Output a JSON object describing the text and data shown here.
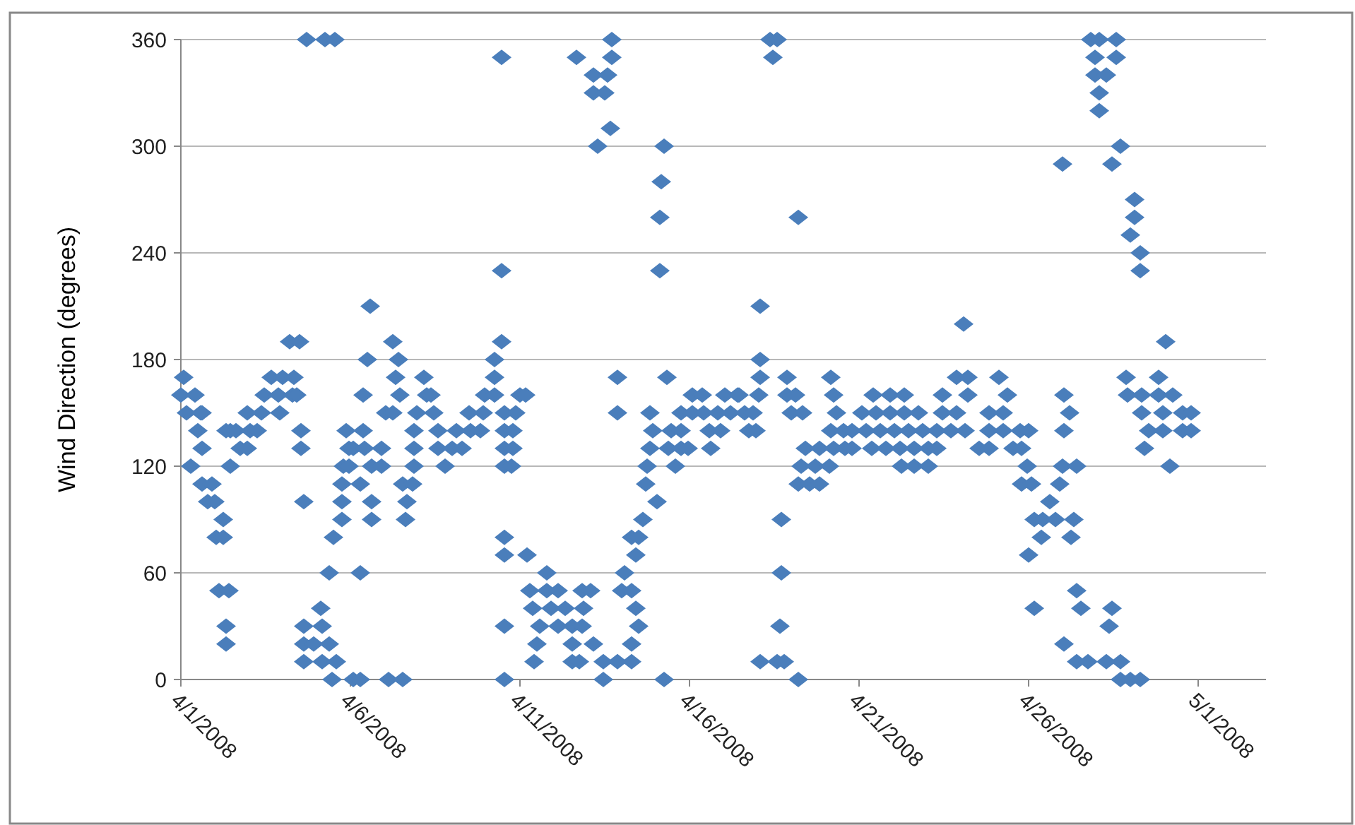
{
  "chart_data": {
    "type": "scatter",
    "ylabel": "Wind Direction (degrees)",
    "color": "#4a7ebb",
    "marker": "diamond",
    "grid": "y",
    "xlim": [
      "2008-04-01",
      "2008-05-03"
    ],
    "xticks": [
      {
        "value": "2008-04-01",
        "label": "4/1/2008"
      },
      {
        "value": "2008-04-06",
        "label": "4/6/2008"
      },
      {
        "value": "2008-04-11",
        "label": "4/11/2008"
      },
      {
        "value": "2008-04-16",
        "label": "4/16/2008"
      },
      {
        "value": "2008-04-21",
        "label": "4/21/2008"
      },
      {
        "value": "2008-04-26",
        "label": "4/26/2008"
      },
      {
        "value": "2008-05-01",
        "label": "5/1/2008"
      }
    ],
    "ylim": [
      0,
      360
    ],
    "yticks": [
      0,
      60,
      120,
      180,
      240,
      300,
      360
    ],
    "x": [
      "2008-04-01T00:00",
      "2008-04-01T02:00",
      "2008-04-01T04:00",
      "2008-04-01T07:00",
      "2008-04-01T10:00",
      "2008-04-01T12:00",
      "2008-04-01T14:00",
      "2008-04-01T15:00",
      "2008-04-01T15:00",
      "2008-04-01T15:00",
      "2008-04-01T19:00",
      "2008-04-01T22:00",
      "2008-04-02T00:00",
      "2008-04-02T01:00",
      "2008-04-02T03:00",
      "2008-04-02T06:00",
      "2008-04-02T06:00",
      "2008-04-02T08:00",
      "2008-04-02T08:00",
      "2008-04-02T08:00",
      "2008-04-02T10:00",
      "2008-04-02T11:00",
      "2008-04-02T11:00",
      "2008-04-02T15:00",
      "2008-04-02T18:00",
      "2008-04-02T23:00",
      "2008-04-02T23:00",
      "2008-04-03T01:00",
      "2008-04-03T06:00",
      "2008-04-03T09:00",
      "2008-04-03T11:00",
      "2008-04-03T16:00",
      "2008-04-03T21:00",
      "2008-04-03T22:00",
      "2008-04-04T00:00",
      "2008-04-04T05:00",
      "2008-04-04T07:00",
      "2008-04-04T08:00",
      "2008-04-04T10:00",
      "2008-04-04T12:00",
      "2008-04-04T13:00",
      "2008-04-04T13:00",
      "2008-04-04T15:00",
      "2008-04-04T15:00",
      "2008-04-04T15:00",
      "2008-04-04T15:00",
      "2008-04-04T17:00",
      "2008-04-04T22:00",
      "2008-04-05T03:00",
      "2008-04-05T04:00",
      "2008-04-05T04:00",
      "2008-04-05T06:00",
      "2008-04-05T09:00",
      "2008-04-05T09:00",
      "2008-04-05T11:00",
      "2008-04-05T12:00",
      "2008-04-05T13:00",
      "2008-04-05T14:00",
      "2008-04-05T18:00",
      "2008-04-05T18:00",
      "2008-04-05T18:00",
      "2008-04-05T19:00",
      "2008-04-05T21:00",
      "2008-04-05T23:00",
      "2008-04-05T23:00",
      "2008-04-06T02:00",
      "2008-04-06T02:00",
      "2008-04-06T07:00",
      "2008-04-06T07:00",
      "2008-04-06T07:00",
      "2008-04-06T09:00",
      "2008-04-06T09:00",
      "2008-04-06T10:00",
      "2008-04-06T12:00",
      "2008-04-06T14:00",
      "2008-04-06T15:00",
      "2008-04-06T15:00",
      "2008-04-06T15:00",
      "2008-04-06T22:00",
      "2008-04-06T22:00",
      "2008-04-07T01:00",
      "2008-04-07T03:00",
      "2008-04-07T06:00",
      "2008-04-07T06:00",
      "2008-04-07T08:00",
      "2008-04-07T10:00",
      "2008-04-07T11:00",
      "2008-04-07T13:00",
      "2008-04-07T13:00",
      "2008-04-07T15:00",
      "2008-04-07T16:00",
      "2008-04-07T20:00",
      "2008-04-07T21:00",
      "2008-04-07T21:00",
      "2008-04-07T21:00",
      "2008-04-07T23:00",
      "2008-04-08T04:00",
      "2008-04-08T06:00",
      "2008-04-08T09:00",
      "2008-04-08T11:00",
      "2008-04-08T14:00",
      "2008-04-08T14:00",
      "2008-04-08T19:00",
      "2008-04-09T00:00",
      "2008-04-09T03:00",
      "2008-04-09T07:00",
      "2008-04-09T12:00",
      "2008-04-09T13:00",
      "2008-04-09T20:00",
      "2008-04-09T22:00",
      "2008-04-09T23:00",
      "2008-04-10T06:00",
      "2008-04-10T06:00",
      "2008-04-10T06:00",
      "2008-04-10T11:00",
      "2008-04-10T11:00",
      "2008-04-10T11:00",
      "2008-04-10T13:00",
      "2008-04-10T13:00",
      "2008-04-10T13:00",
      "2008-04-10T13:00",
      "2008-04-10T13:00",
      "2008-04-10T13:00",
      "2008-04-10T13:00",
      "2008-04-10T13:00",
      "2008-04-10T18:00",
      "2008-04-10T19:00",
      "2008-04-10T19:00",
      "2008-04-10T21:00",
      "2008-04-11T00:00",
      "2008-04-11T04:00",
      "2008-04-11T05:00",
      "2008-04-11T07:00",
      "2008-04-11T09:00",
      "2008-04-11T10:00",
      "2008-04-11T12:00",
      "2008-04-11T14:00",
      "2008-04-11T19:00",
      "2008-04-11T19:00",
      "2008-04-11T22:00",
      "2008-04-12T03:00",
      "2008-04-12T03:00",
      "2008-04-12T08:00",
      "2008-04-12T13:00",
      "2008-04-12T13:00",
      "2008-04-12T13:00",
      "2008-04-12T16:00",
      "2008-04-12T18:00",
      "2008-04-12T20:00",
      "2008-04-12T20:00",
      "2008-04-12T21:00",
      "2008-04-13T02:00",
      "2008-04-13T04:00",
      "2008-04-13T04:00",
      "2008-04-13T04:00",
      "2008-04-13T07:00",
      "2008-04-13T11:00",
      "2008-04-13T11:00",
      "2008-04-13T12:00",
      "2008-04-13T14:00",
      "2008-04-13T16:00",
      "2008-04-13T17:00",
      "2008-04-13T17:00",
      "2008-04-13T21:00",
      "2008-04-13T21:00",
      "2008-04-13T21:00",
      "2008-04-14T00:00",
      "2008-04-14T02:00",
      "2008-04-14T07:00",
      "2008-04-14T07:00",
      "2008-04-14T07:00",
      "2008-04-14T07:00",
      "2008-04-14T10:00",
      "2008-04-14T10:00",
      "2008-04-14T12:00",
      "2008-04-14T12:00",
      "2008-04-14T15:00",
      "2008-04-14T17:00",
      "2008-04-14T18:00",
      "2008-04-14T20:00",
      "2008-04-14T20:00",
      "2008-04-14T22:00",
      "2008-04-15T01:00",
      "2008-04-15T03:00",
      "2008-04-15T03:00",
      "2008-04-15T04:00",
      "2008-04-15T06:00",
      "2008-04-15T06:00",
      "2008-04-15T08:00",
      "2008-04-15T09:00",
      "2008-04-15T11:00",
      "2008-04-15T14:00",
      "2008-04-15T18:00",
      "2008-04-15T18:00",
      "2008-04-15T18:00",
      "2008-04-15T23:00",
      "2008-04-16T02:00",
      "2008-04-16T02:00",
      "2008-04-16T09:00",
      "2008-04-16T10:00",
      "2008-04-16T14:00",
      "2008-04-16T15:00",
      "2008-04-16T20:00",
      "2008-04-16T22:00",
      "2008-04-17T01:00",
      "2008-04-17T05:00",
      "2008-04-17T10:00",
      "2008-04-17T11:00",
      "2008-04-17T15:00",
      "2008-04-17T18:00",
      "2008-04-17T21:00",
      "2008-04-17T23:00",
      "2008-04-18T01:00",
      "2008-04-18T02:00",
      "2008-04-18T02:00",
      "2008-04-18T02:00",
      "2008-04-18T02:00",
      "2008-04-18T09:00",
      "2008-04-18T11:00",
      "2008-04-18T14:00",
      "2008-04-18T14:00",
      "2008-04-18T16:00",
      "2008-04-18T17:00",
      "2008-04-18T17:00",
      "2008-04-18T19:00",
      "2008-04-18T21:00",
      "2008-04-18T21:00",
      "2008-04-19T00:00",
      "2008-04-19T03:00",
      "2008-04-19T05:00",
      "2008-04-19T05:00",
      "2008-04-19T05:00",
      "2008-04-19T07:00",
      "2008-04-19T08:00",
      "2008-04-19T10:00",
      "2008-04-19T13:00",
      "2008-04-19T17:00",
      "2008-04-19T20:00",
      "2008-04-19T20:00",
      "2008-04-20T03:00",
      "2008-04-20T04:00",
      "2008-04-20T04:00",
      "2008-04-20T06:00",
      "2008-04-20T06:00",
      "2008-04-20T08:00",
      "2008-04-20T13:00",
      "2008-04-20T14:00",
      "2008-04-20T19:00",
      "2008-04-20T19:00",
      "2008-04-21T02:00",
      "2008-04-21T05:00",
      "2008-04-21T09:00",
      "2008-04-21T10:00",
      "2008-04-21T12:00",
      "2008-04-21T15:00",
      "2008-04-21T19:00",
      "2008-04-21T22:00",
      "2008-04-21T22:00",
      "2008-04-22T01:00",
      "2008-04-22T05:00",
      "2008-04-22T06:00",
      "2008-04-22T08:00",
      "2008-04-22T08:00",
      "2008-04-22T11:00",
      "2008-04-22T15:00",
      "2008-04-22T15:00",
      "2008-04-22T18:00",
      "2008-04-22T21:00",
      "2008-04-23T01:00",
      "2008-04-23T01:00",
      "2008-04-23T07:00",
      "2008-04-23T07:00",
      "2008-04-23T11:00",
      "2008-04-23T11:00",
      "2008-04-23T17:00",
      "2008-04-23T21:00",
      "2008-04-23T21:00",
      "2008-04-24T02:00",
      "2008-04-24T03:00",
      "2008-04-24T05:00",
      "2008-04-24T05:00",
      "2008-04-24T13:00",
      "2008-04-24T20:00",
      "2008-04-24T20:00",
      "2008-04-24T20:00",
      "2008-04-25T03:00",
      "2008-04-25T06:00",
      "2008-04-25T06:00",
      "2008-04-25T09:00",
      "2008-04-25T13:00",
      "2008-04-25T18:00",
      "2008-04-25T19:00",
      "2008-04-25T19:00",
      "2008-04-25T23:00",
      "2008-04-26T00:00",
      "2008-04-26T00:00",
      "2008-04-26T02:00",
      "2008-04-26T04:00",
      "2008-04-26T04:00",
      "2008-04-26T09:00",
      "2008-04-26T10:00",
      "2008-04-26T15:00",
      "2008-04-26T19:00",
      "2008-04-26T22:00",
      "2008-04-27T00:00",
      "2008-04-27T00:00",
      "2008-04-27T01:00",
      "2008-04-27T01:00",
      "2008-04-27T01:00",
      "2008-04-27T05:00",
      "2008-04-27T06:00",
      "2008-04-27T08:00",
      "2008-04-27T10:00",
      "2008-04-27T10:00",
      "2008-04-27T10:00",
      "2008-04-27T13:00",
      "2008-04-27T18:00",
      "2008-04-27T20:00",
      "2008-04-27T23:00",
      "2008-04-27T23:00",
      "2008-04-28T02:00",
      "2008-04-28T02:00",
      "2008-04-28T02:00",
      "2008-04-28T07:00",
      "2008-04-28T07:00",
      "2008-04-28T09:00",
      "2008-04-28T11:00",
      "2008-04-28T11:00",
      "2008-04-28T14:00",
      "2008-04-28T14:00",
      "2008-04-28T17:00",
      "2008-04-28T17:00",
      "2008-04-28T17:00",
      "2008-04-28T21:00",
      "2008-04-28T22:00",
      "2008-04-29T00:00",
      "2008-04-29T00:00",
      "2008-04-29T03:00",
      "2008-04-29T03:00",
      "2008-04-29T07:00",
      "2008-04-29T07:00",
      "2008-04-29T07:00",
      "2008-04-29T08:00",
      "2008-04-29T08:00",
      "2008-04-29T10:00",
      "2008-04-29T13:00",
      "2008-04-29T20:00",
      "2008-04-29T20:00",
      "2008-04-29T23:00",
      "2008-04-29T23:00",
      "2008-04-30T01:00",
      "2008-04-30T04:00",
      "2008-04-30T06:00",
      "2008-04-30T13:00",
      "2008-04-30T13:00",
      "2008-04-30T19:00",
      "2008-04-30T19:00"
    ],
    "values": [
      160,
      170,
      150,
      120,
      160,
      140,
      150,
      150,
      130,
      110,
      100,
      110,
      100,
      80,
      50,
      90,
      80,
      30,
      20,
      140,
      50,
      120,
      140,
      140,
      130,
      130,
      150,
      140,
      140,
      150,
      160,
      170,
      160,
      150,
      170,
      190,
      160,
      170,
      160,
      190,
      140,
      130,
      100,
      30,
      20,
      10,
      360,
      20,
      40,
      30,
      10,
      360,
      20,
      60,
      0,
      80,
      360,
      10,
      90,
      100,
      110,
      120,
      140,
      130,
      120,
      0,
      130,
      0,
      110,
      60,
      140,
      160,
      130,
      180,
      210,
      120,
      100,
      90,
      130,
      120,
      150,
      0,
      150,
      190,
      170,
      180,
      160,
      0,
      110,
      90,
      100,
      110,
      120,
      130,
      140,
      150,
      170,
      160,
      160,
      150,
      140,
      130,
      120,
      130,
      140,
      130,
      150,
      140,
      140,
      150,
      160,
      160,
      170,
      180,
      190,
      230,
      350,
      80,
      70,
      30,
      0,
      150,
      140,
      130,
      120,
      120,
      140,
      130,
      150,
      160,
      160,
      70,
      50,
      40,
      10,
      20,
      30,
      60,
      50,
      40,
      50,
      30,
      40,
      30,
      20,
      10,
      350,
      10,
      50,
      30,
      40,
      50,
      340,
      330,
      20,
      300,
      0,
      10,
      330,
      340,
      310,
      360,
      350,
      170,
      150,
      10,
      50,
      60,
      50,
      10,
      20,
      80,
      40,
      70,
      30,
      80,
      90,
      110,
      120,
      130,
      150,
      140,
      100,
      260,
      230,
      280,
      300,
      0,
      170,
      130,
      140,
      120,
      130,
      140,
      150,
      130,
      150,
      160,
      160,
      150,
      140,
      130,
      150,
      140,
      160,
      150,
      160,
      160,
      150,
      140,
      150,
      140,
      160,
      210,
      180,
      170,
      10,
      360,
      350,
      360,
      10,
      30,
      90,
      60,
      10,
      170,
      160,
      150,
      160,
      0,
      110,
      260,
      120,
      150,
      130,
      110,
      120,
      130,
      110,
      120,
      170,
      140,
      160,
      130,
      150,
      140,
      130,
      140,
      130,
      150,
      140,
      130,
      160,
      150,
      140,
      130,
      160,
      150,
      140,
      130,
      120,
      160,
      150,
      140,
      130,
      120,
      150,
      140,
      130,
      120,
      140,
      130,
      160,
      150,
      140,
      170,
      150,
      200,
      140,
      170,
      160,
      130,
      150,
      140,
      130,
      170,
      150,
      140,
      160,
      130,
      140,
      130,
      110,
      120,
      140,
      70,
      110,
      90,
      40,
      80,
      90,
      100,
      90,
      110,
      120,
      290,
      160,
      140,
      20,
      150,
      80,
      90,
      120,
      50,
      10,
      40,
      10,
      360,
      350,
      340,
      330,
      320,
      360,
      340,
      10,
      30,
      290,
      40,
      360,
      350,
      300,
      10,
      0,
      170,
      160,
      250,
      0,
      270,
      260,
      240,
      230,
      0,
      160,
      150,
      130,
      140,
      170,
      160,
      150,
      140,
      190,
      120,
      160,
      150,
      140,
      150,
      140
    ]
  }
}
